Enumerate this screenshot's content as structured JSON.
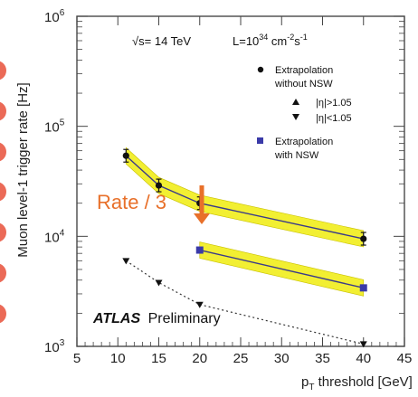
{
  "chart_data": {
    "type": "line",
    "title": "",
    "xlabel_main": "p",
    "xlabel_sub": "T",
    "xlabel_rest": " threshold [GeV]",
    "ylabel": "Muon level-1 trigger rate [Hz]",
    "xlim": [
      5,
      45
    ],
    "ylim": [
      1000,
      1000000
    ],
    "yscale": "log",
    "x_ticks": [
      "5",
      "10",
      "15",
      "20",
      "25",
      "30",
      "35",
      "40",
      "45"
    ],
    "y_ticks": [
      {
        "base": "10",
        "exp": "3"
      },
      {
        "base": "10",
        "exp": "4"
      },
      {
        "base": "10",
        "exp": "5"
      },
      {
        "base": "10",
        "exp": "6"
      }
    ],
    "annotations": {
      "energy": "√s= 14 TeV",
      "lumi_prefix": "L=10",
      "lumi_exp": "34",
      "lumi_unit": " cm",
      "lumi_unit_exp": "-2",
      "lumi_s": "s",
      "lumi_s_exp": "-1",
      "experiment": "ATLAS",
      "status": "Preliminary",
      "rate_label": "Rate / 3"
    },
    "legend": [
      {
        "text_line1": "Extrapolation",
        "text_line2": "without NSW",
        "marker": "circle"
      },
      {
        "text_line1": "|η|>1.05",
        "marker": "triangle-up"
      },
      {
        "text_line1": "|η|<1.05",
        "marker": "triangle-down"
      },
      {
        "text_line1": "Extrapolation",
        "text_line2": "with NSW",
        "marker": "square"
      }
    ],
    "series": [
      {
        "name": "Extrapolation without NSW",
        "marker": "circle",
        "x": [
          11,
          15,
          20,
          40
        ],
        "y": [
          54000,
          29000,
          20000,
          9500
        ],
        "band": true
      },
      {
        "name": "Extrapolation with NSW",
        "marker": "square",
        "x": [
          20,
          40
        ],
        "y": [
          7500,
          3400
        ],
        "band": true
      },
      {
        "name": "|η|<1.05",
        "marker": "triangle-down",
        "x": [
          11,
          15,
          20,
          40
        ],
        "y": [
          6000,
          3800,
          2400,
          1050
        ],
        "band": false
      }
    ],
    "colors": {
      "band": "#f2ef32",
      "band_edge": "#c8c000",
      "arrow": "#e8702a",
      "rate_label": "#e8702a",
      "with_nsw_marker": "#3a3aa8",
      "axis": "#444444"
    }
  }
}
